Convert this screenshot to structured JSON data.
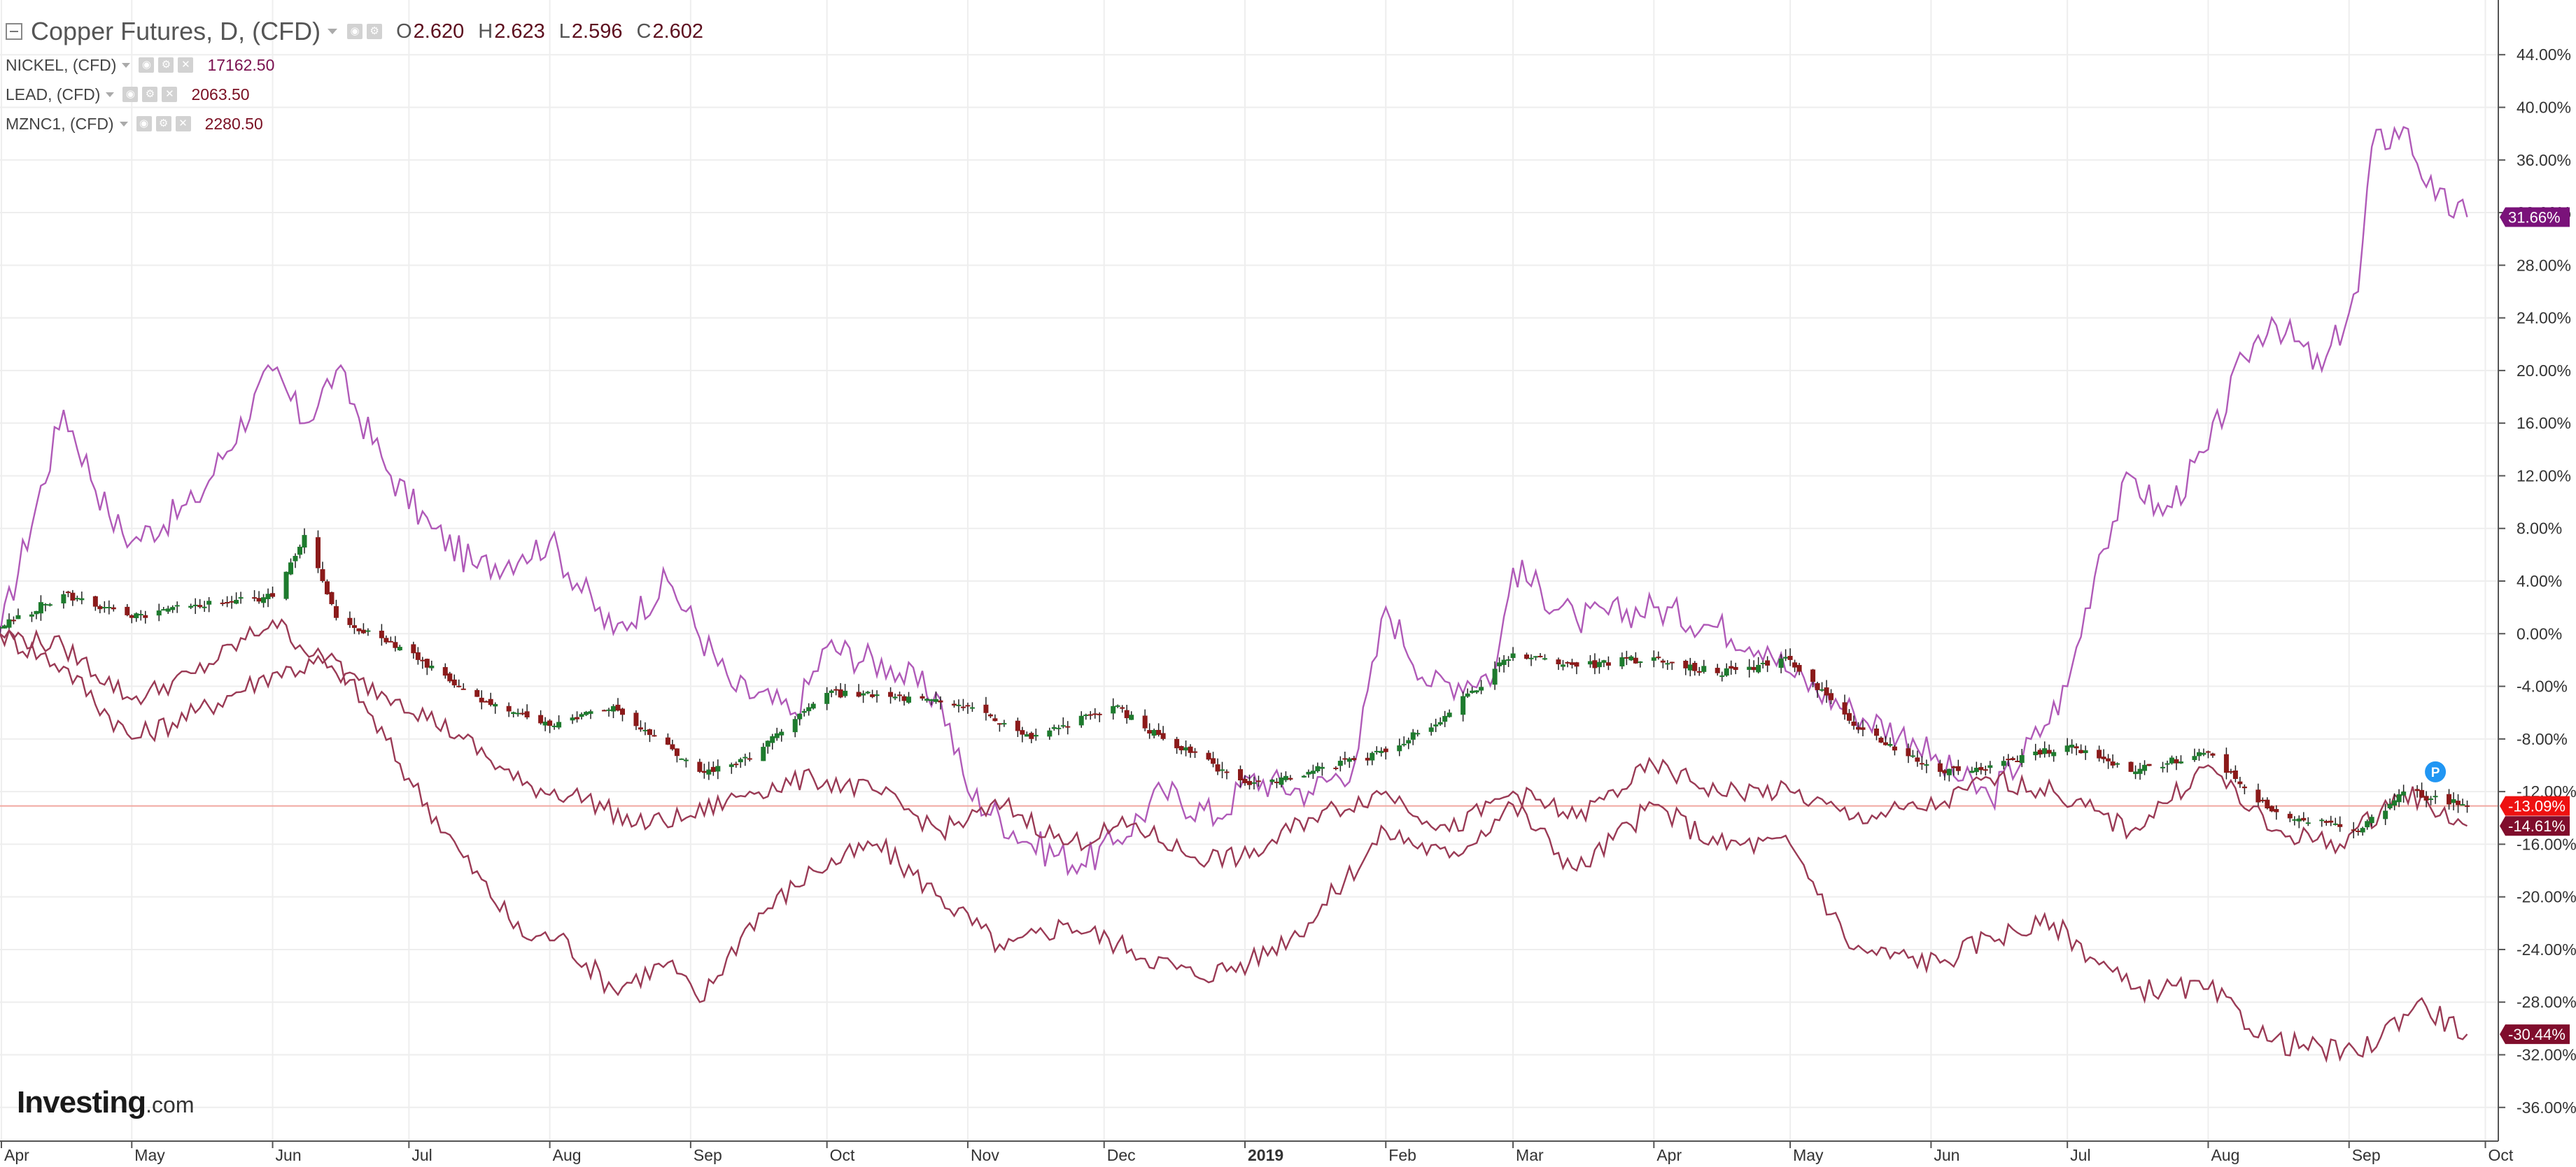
{
  "legend": {
    "main_symbol": "Copper Futures, D, (CFD)",
    "ohlc": [
      {
        "key": "O",
        "value": "2.620"
      },
      {
        "key": "H",
        "value": "2.623"
      },
      {
        "key": "L",
        "value": "2.596"
      },
      {
        "key": "C",
        "value": "2.602"
      }
    ],
    "compare": [
      {
        "symbol": "NICKEL, (CFD)",
        "value": "17162.50",
        "color": "#8e1e8c"
      },
      {
        "symbol": "LEAD, (CFD)",
        "value": "2063.50",
        "color": "#7a0f22"
      },
      {
        "symbol": "MZNC1, (CFD)",
        "value": "2280.50",
        "color": "#7a0f22"
      }
    ]
  },
  "logo": {
    "main": "Investing",
    "suffix": ".com"
  },
  "colors": {
    "up_candle": "#1e7b2e",
    "down_candle": "#8b1a1a",
    "nickel_line": "#b05ab8",
    "lead_line": "#9a3a55",
    "zinc_line": "#9a3a55",
    "current_line": "#f1a8a0",
    "badge_current": "#ee1111",
    "badge_nickel": "#7a127a",
    "badge_lead": "#800d2c",
    "badge_zinc": "#800d2c",
    "grid": "#eeeeee",
    "marker": "#2196f3"
  },
  "icons": [
    "collapse-icon",
    "eye-icon",
    "gear-icon",
    "close-icon",
    "caret-down-icon",
    "pivot-marker-icon"
  ],
  "chart_data": {
    "type": "line",
    "subtype": "percent-compare with candlesticks",
    "yunit": "%",
    "ylim": [
      -37.5,
      45.5
    ],
    "y_ticks": [
      44,
      40,
      36,
      32,
      28,
      24,
      20,
      16,
      12,
      8,
      4,
      0,
      -4,
      -8,
      -12,
      -16,
      -20,
      -24,
      -28,
      -32,
      -36
    ],
    "y_tick_labels": [
      "44.00%",
      "40.00%",
      "36.00%",
      "32.00%",
      "28.00%",
      "24.00%",
      "20.00%",
      "16.00%",
      "12.00%",
      "8.00%",
      "4.00%",
      "0.00%",
      "-4.00%",
      "-8.00%",
      "-12.00%",
      "-16.00%",
      "-20.00%",
      "-24.00%",
      "-28.00%",
      "-32.00%",
      "-36.00%"
    ],
    "x_start": "2018-04-02",
    "x_end": "2019-09-30",
    "x_ticks": [
      {
        "date": "2018-04-01",
        "label": "Apr"
      },
      {
        "date": "2018-05-01",
        "label": "May"
      },
      {
        "date": "2018-06-01",
        "label": "Jun"
      },
      {
        "date": "2018-07-01",
        "label": "Jul"
      },
      {
        "date": "2018-08-01",
        "label": "Aug"
      },
      {
        "date": "2018-09-01",
        "label": "Sep"
      },
      {
        "date": "2018-10-01",
        "label": "Oct"
      },
      {
        "date": "2018-11-01",
        "label": "Nov"
      },
      {
        "date": "2018-12-01",
        "label": "Dec"
      },
      {
        "date": "2019-01-01",
        "label": "2019",
        "bold": true
      },
      {
        "date": "2019-02-01",
        "label": "Feb"
      },
      {
        "date": "2019-03-01",
        "label": "Mar"
      },
      {
        "date": "2019-04-01",
        "label": "Apr"
      },
      {
        "date": "2019-05-01",
        "label": "May"
      },
      {
        "date": "2019-06-01",
        "label": "Jun"
      },
      {
        "date": "2019-07-01",
        "label": "Jul"
      },
      {
        "date": "2019-08-01",
        "label": "Aug"
      },
      {
        "date": "2019-09-01",
        "label": "Sep"
      },
      {
        "date": "2019-10-01",
        "label": "Oct"
      }
    ],
    "current_value": -13.09,
    "badges": [
      {
        "series": "NICKEL",
        "label": "31.66%",
        "value": 31.66
      },
      {
        "series": "Copper Futures",
        "label": "-13.09%",
        "value": -13.09
      },
      {
        "series": "MZNC1",
        "label": "-14.61%",
        "value": -14.61
      },
      {
        "series": "LEAD",
        "label": "-30.44%",
        "value": -30.44
      }
    ],
    "copper_candles": {
      "name": "Copper Futures",
      "x": [
        "2018-04-02",
        "2018-04-16",
        "2018-05-01",
        "2018-05-15",
        "2018-06-01",
        "2018-06-08",
        "2018-06-15",
        "2018-06-29",
        "2018-07-16",
        "2018-08-01",
        "2018-08-15",
        "2018-09-03",
        "2018-09-14",
        "2018-10-01",
        "2018-10-15",
        "2018-11-01",
        "2018-11-15",
        "2018-12-03",
        "2018-12-14",
        "2019-01-02",
        "2019-01-15",
        "2019-02-01",
        "2019-02-15",
        "2019-03-01",
        "2019-03-15",
        "2019-04-01",
        "2019-04-15",
        "2019-05-01",
        "2019-05-15",
        "2019-06-03",
        "2019-06-14",
        "2019-07-01",
        "2019-07-15",
        "2019-08-01",
        "2019-08-15",
        "2019-09-03",
        "2019-09-13",
        "2019-09-27"
      ],
      "close": [
        0.5,
        3.0,
        1.2,
        2.2,
        2.8,
        7.5,
        1.2,
        -1.0,
        -4.8,
        -7.0,
        -5.5,
        -10.5,
        -9.5,
        -4.5,
        -4.8,
        -5.5,
        -8.0,
        -5.5,
        -8.0,
        -11.5,
        -10.5,
        -9.0,
        -6.0,
        -1.5,
        -2.5,
        -1.8,
        -3.0,
        -2.0,
        -7.0,
        -10.5,
        -10.0,
        -8.5,
        -10.5,
        -9.0,
        -13.5,
        -15.0,
        -12.0,
        -13.09
      ]
    },
    "series": [
      {
        "name": "NICKEL",
        "x": [
          "2018-04-02",
          "2018-04-16",
          "2018-04-26",
          "2018-05-01",
          "2018-05-15",
          "2018-06-01",
          "2018-06-08",
          "2018-06-15",
          "2018-06-27",
          "2018-07-06",
          "2018-07-16",
          "2018-07-26",
          "2018-08-01",
          "2018-08-15",
          "2018-08-27",
          "2018-09-10",
          "2018-09-24",
          "2018-10-01",
          "2018-10-15",
          "2018-10-26",
          "2018-11-01",
          "2018-11-15",
          "2018-11-26",
          "2018-12-03",
          "2018-12-14",
          "2018-12-26",
          "2019-01-02",
          "2019-01-15",
          "2019-01-25",
          "2019-02-01",
          "2019-02-11",
          "2019-02-25",
          "2019-03-01",
          "2019-03-15",
          "2019-04-01",
          "2019-04-15",
          "2019-04-26",
          "2019-05-01",
          "2019-05-15",
          "2019-05-28",
          "2019-06-03",
          "2019-06-14",
          "2019-06-26",
          "2019-07-01",
          "2019-07-08",
          "2019-07-15",
          "2019-07-22",
          "2019-08-01",
          "2019-08-09",
          "2019-08-15",
          "2019-08-26",
          "2019-09-03",
          "2019-09-06",
          "2019-09-13",
          "2019-09-20",
          "2019-09-27"
        ],
        "values": [
          0.0,
          17.0,
          9.0,
          7.0,
          10.0,
          20.0,
          16.0,
          20.0,
          12.0,
          8.0,
          5.0,
          6.0,
          7.0,
          0.0,
          4.0,
          -4.0,
          -6.0,
          -1.0,
          -2.5,
          -5.0,
          -12.0,
          -16.0,
          -17.5,
          -16.0,
          -12.0,
          -14.0,
          -11.0,
          -12.0,
          -10.0,
          2.0,
          -4.0,
          -3.0,
          5.0,
          1.0,
          2.0,
          0.5,
          -1.0,
          -3.0,
          -6.0,
          -8.0,
          -10.0,
          -12.5,
          -7.0,
          -4.0,
          6.0,
          12.0,
          9.0,
          14.0,
          21.0,
          24.0,
          20.0,
          26.0,
          37.0,
          38.5,
          33.0,
          31.66
        ]
      },
      {
        "name": "LEAD",
        "x": [
          "2018-04-02",
          "2018-04-16",
          "2018-05-01",
          "2018-05-15",
          "2018-06-01",
          "2018-06-15",
          "2018-07-01",
          "2018-07-13",
          "2018-07-26",
          "2018-08-03",
          "2018-08-15",
          "2018-08-27",
          "2018-09-03",
          "2018-09-14",
          "2018-09-28",
          "2018-10-12",
          "2018-10-26",
          "2018-11-09",
          "2018-11-23",
          "2018-12-07",
          "2018-12-21",
          "2019-01-02",
          "2019-01-15",
          "2019-02-01",
          "2019-02-15",
          "2019-03-01",
          "2019-03-15",
          "2019-04-01",
          "2019-04-15",
          "2019-05-01",
          "2019-05-15",
          "2019-06-03",
          "2019-06-14",
          "2019-06-28",
          "2019-07-15",
          "2019-08-01",
          "2019-08-15",
          "2019-09-03",
          "2019-09-16",
          "2019-09-27"
        ],
        "values": [
          0.0,
          -2.5,
          -8.0,
          -6.0,
          -3.0,
          -2.0,
          -11.0,
          -17.0,
          -23.0,
          -23.0,
          -27.0,
          -25.0,
          -28.0,
          -22.0,
          -18.0,
          -16.0,
          -20.0,
          -24.0,
          -22.0,
          -24.0,
          -26.0,
          -25.0,
          -22.0,
          -15.0,
          -17.0,
          -13.0,
          -18.0,
          -13.0,
          -16.0,
          -16.0,
          -24.0,
          -25.0,
          -23.0,
          -22.0,
          -27.0,
          -27.0,
          -31.0,
          -32.0,
          -28.0,
          -30.44
        ]
      },
      {
        "name": "MZNC1",
        "x": [
          "2018-04-02",
          "2018-04-16",
          "2018-05-01",
          "2018-05-15",
          "2018-06-01",
          "2018-06-15",
          "2018-06-29",
          "2018-07-13",
          "2018-07-26",
          "2018-08-09",
          "2018-08-20",
          "2018-08-31",
          "2018-09-14",
          "2018-09-28",
          "2018-10-12",
          "2018-10-26",
          "2018-11-09",
          "2018-11-23",
          "2018-12-07",
          "2018-12-21",
          "2019-01-02",
          "2019-01-15",
          "2019-02-01",
          "2019-02-15",
          "2019-03-01",
          "2019-03-15",
          "2019-04-01",
          "2019-04-15",
          "2019-05-01",
          "2019-05-15",
          "2019-06-03",
          "2019-06-14",
          "2019-06-28",
          "2019-07-15",
          "2019-08-01",
          "2019-08-15",
          "2019-08-30",
          "2019-09-13",
          "2019-09-27"
        ],
        "values": [
          0.0,
          -1.0,
          -5.0,
          -3.0,
          1.0,
          -3.0,
          -5.0,
          -8.0,
          -11.5,
          -12.5,
          -14.5,
          -14.0,
          -12.0,
          -11.0,
          -12.0,
          -15.0,
          -13.0,
          -16.0,
          -14.5,
          -17.0,
          -17.0,
          -14.0,
          -12.0,
          -15.0,
          -12.0,
          -14.0,
          -10.0,
          -12.0,
          -12.0,
          -14.0,
          -13.0,
          -11.0,
          -12.0,
          -15.0,
          -10.0,
          -15.0,
          -16.0,
          -12.0,
          -14.61
        ]
      }
    ],
    "title": "Copper Futures, D, (CFD)",
    "legend_position": "top-left",
    "grid": true
  }
}
